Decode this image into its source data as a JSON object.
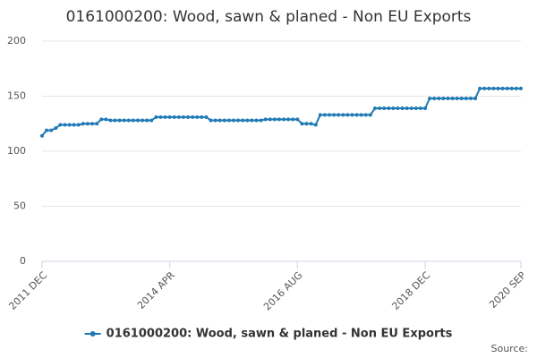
{
  "chart_data": {
    "type": "line",
    "title": "0161000200: Wood, sawn & planed - Non EU Exports",
    "source": "Source:",
    "categories": [
      "2011 DEC",
      null,
      null,
      null,
      null,
      null,
      null,
      null,
      null,
      null,
      null,
      null,
      null,
      null,
      null,
      null,
      null,
      null,
      null,
      null,
      null,
      null,
      null,
      null,
      null,
      null,
      null,
      null,
      "2014 APR",
      null,
      null,
      null,
      null,
      null,
      null,
      null,
      null,
      null,
      null,
      null,
      null,
      null,
      null,
      null,
      null,
      null,
      null,
      null,
      null,
      null,
      null,
      null,
      null,
      null,
      null,
      null,
      "2016 AUG",
      null,
      null,
      null,
      null,
      null,
      null,
      null,
      null,
      null,
      null,
      null,
      null,
      null,
      null,
      null,
      null,
      null,
      null,
      null,
      null,
      null,
      null,
      null,
      null,
      null,
      null,
      null,
      "2018 DEC",
      null,
      null,
      null,
      null,
      null,
      null,
      null,
      null,
      null,
      null,
      null,
      null,
      null,
      null,
      null,
      null,
      null,
      null,
      null,
      null,
      "2020 SEP"
    ],
    "series": [
      {
        "name": "0161000200: Wood, sawn & planed - Non EU Exports",
        "color": "#1f7ab5",
        "values": [
          114,
          119,
          119,
          121,
          124,
          124,
          124,
          124,
          124,
          125,
          125,
          125,
          125,
          129,
          129,
          128,
          128,
          128,
          128,
          128,
          128,
          128,
          128,
          128,
          128,
          131,
          131,
          131,
          131,
          131,
          131,
          131,
          131,
          131,
          131,
          131,
          131,
          128,
          128,
          128,
          128,
          128,
          128,
          128,
          128,
          128,
          128,
          128,
          128,
          129,
          129,
          129,
          129,
          129,
          129,
          129,
          129,
          125,
          125,
          125,
          124,
          133,
          133,
          133,
          133,
          133,
          133,
          133,
          133,
          133,
          133,
          133,
          133,
          139,
          139,
          139,
          139,
          139,
          139,
          139,
          139,
          139,
          139,
          139,
          139,
          148,
          148,
          148,
          148,
          148,
          148,
          148,
          148,
          148,
          148,
          148,
          157,
          157,
          157,
          157,
          157,
          157,
          157,
          157,
          157,
          157
        ]
      }
    ],
    "ylim": [
      0,
      200
    ],
    "yticks": [
      0,
      50,
      100,
      150,
      200
    ],
    "grid": true
  }
}
